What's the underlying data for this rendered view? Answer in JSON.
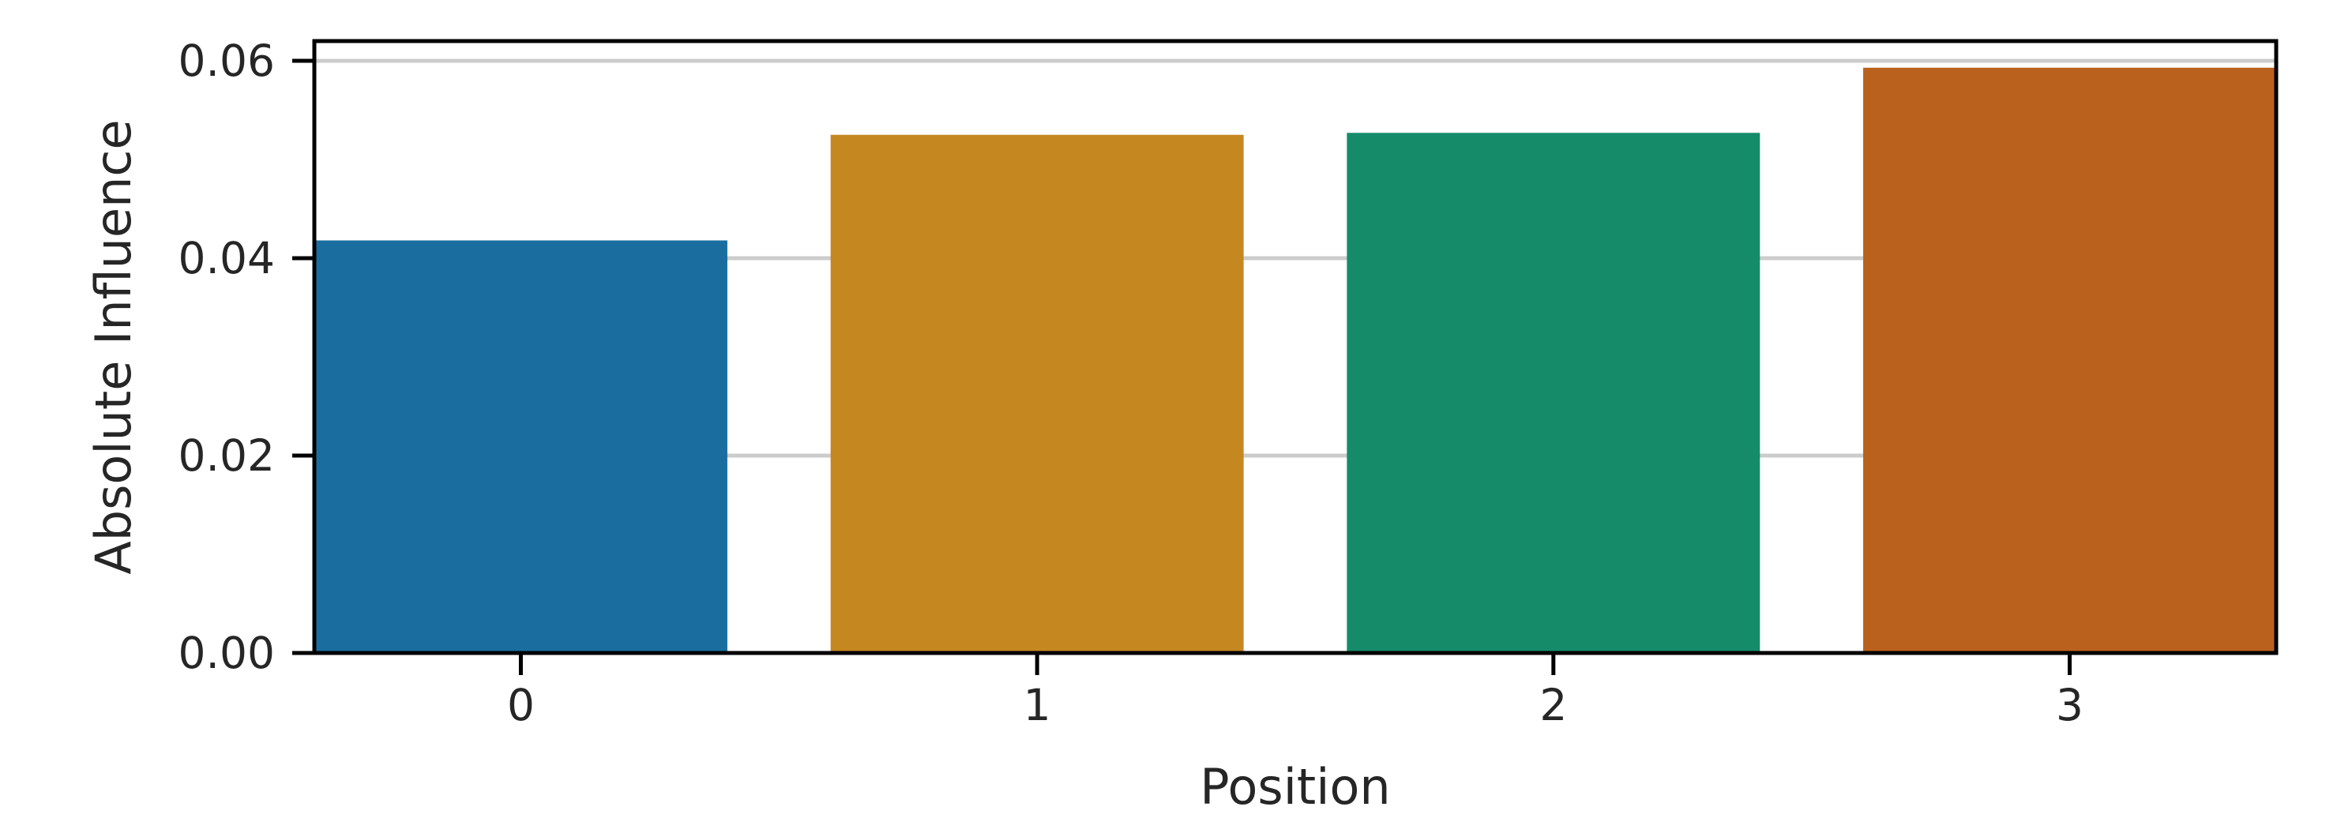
{
  "chart_data": {
    "type": "bar",
    "categories": [
      "0",
      "1",
      "2",
      "3"
    ],
    "values": [
      0.0418,
      0.0525,
      0.0527,
      0.0593
    ],
    "colors": [
      "#1a6e9f",
      "#c58820",
      "#168b6a",
      "#b9611d"
    ],
    "xlabel": "Position",
    "ylabel": "Absolute Influence",
    "ylim": [
      0,
      0.062
    ],
    "yticks": [
      0,
      0.02,
      0.04,
      0.06
    ],
    "ytick_labels": [
      "0.00",
      "0.02",
      "0.04",
      "0.06"
    ],
    "grid": "horizontal",
    "grid_color": "#cccccc",
    "axis_color": "#000000"
  }
}
